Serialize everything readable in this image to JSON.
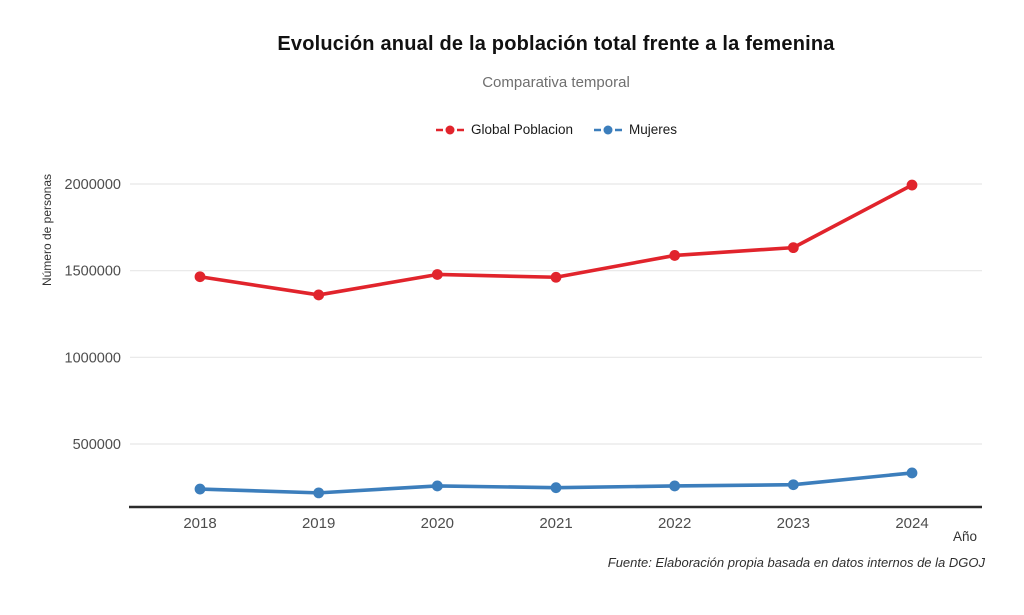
{
  "chart_data": {
    "type": "line",
    "title": "Evolución anual de la población total frente a la femenina",
    "subtitle": "Comparativa temporal",
    "xlabel": "Año",
    "ylabel": "Número de personas",
    "source_note": "Fuente: Elaboración propia basada en datos internos de la DGOJ",
    "categories": [
      "2018",
      "2019",
      "2020",
      "2021",
      "2022",
      "2023",
      "2024"
    ],
    "series": [
      {
        "name": "Global Poblacion",
        "color": "#e1242c",
        "values": [
          1465000,
          1360000,
          1478000,
          1462000,
          1588000,
          1633000,
          1994000
        ]
      },
      {
        "name": "Mujeres",
        "color": "#3c7ebc",
        "values": [
          240000,
          218000,
          258000,
          248000,
          258000,
          265000,
          333000
        ]
      }
    ],
    "yticks": [
      500000,
      1000000,
      1500000,
      2000000
    ],
    "ylim": [
      136500,
      2127000
    ],
    "grid": true,
    "legend_position": "top",
    "colors": {
      "grid": "#e7e7e7",
      "axis": "#2b2b2b",
      "tick_label": "#4d4d4d",
      "background": "#ffffff"
    }
  }
}
